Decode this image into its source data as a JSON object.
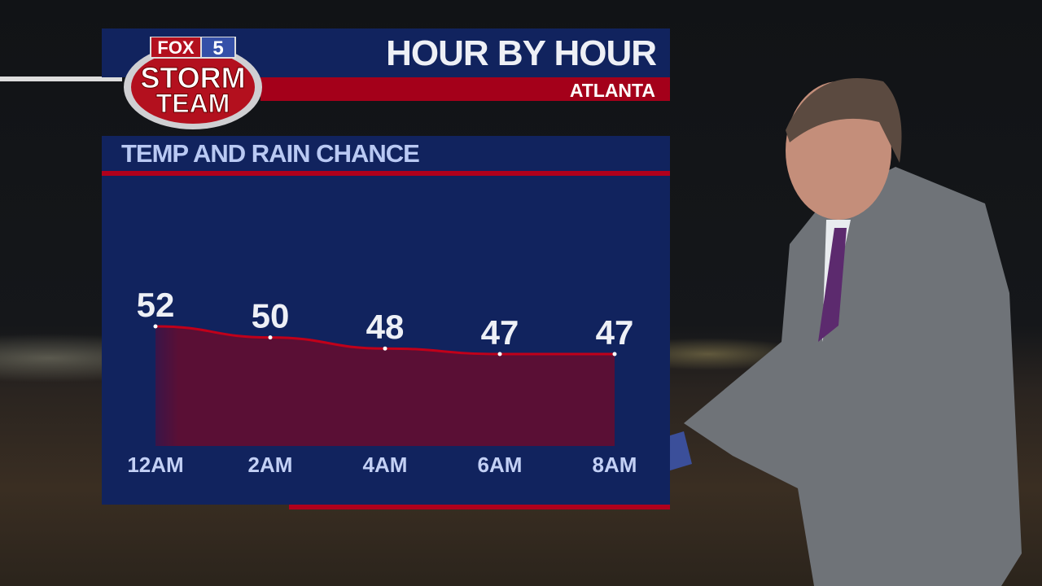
{
  "header": {
    "title": "HOUR BY HOUR",
    "location": "ATLANTA"
  },
  "logo": {
    "line1": "FOX",
    "line2": "5",
    "line3": "STORM",
    "line4": "TEAM"
  },
  "subtitle": "TEMP AND RAIN CHANCE",
  "colors": {
    "panel": "#11235e",
    "accent_red": "#a4001a",
    "fill": "#5a0f35",
    "line": "#c0001a"
  },
  "chart_data": {
    "type": "area",
    "categories": [
      "12AM",
      "2AM",
      "4AM",
      "6AM",
      "8AM"
    ],
    "values": [
      52,
      50,
      48,
      47,
      47
    ],
    "data_labels": [
      "52",
      "50",
      "48",
      "47",
      "47"
    ],
    "title": "TEMP AND RAIN CHANCE",
    "grid": false
  }
}
